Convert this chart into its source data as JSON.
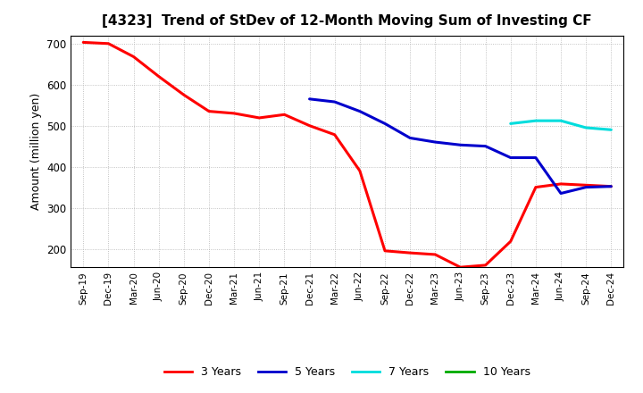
{
  "title": "[4323]  Trend of StDev of 12-Month Moving Sum of Investing CF",
  "ylabel": "Amount (million yen)",
  "ylim": [
    155,
    720
  ],
  "yticks": [
    200,
    300,
    400,
    500,
    600,
    700
  ],
  "background_color": "#ffffff",
  "grid_color": "#aaaaaa",
  "series": {
    "3 Years": {
      "color": "#ff0000",
      "x": [
        "Sep-19",
        "Dec-19",
        "Mar-20",
        "Jun-20",
        "Sep-20",
        "Dec-20",
        "Mar-21",
        "Jun-21",
        "Sep-21",
        "Dec-21",
        "Mar-22",
        "Jun-22",
        "Sep-22",
        "Dec-22",
        "Mar-23",
        "Jun-23",
        "Sep-23",
        "Dec-23",
        "Mar-24",
        "Jun-24",
        "Sep-24",
        "Dec-24"
      ],
      "y": [
        703,
        700,
        668,
        620,
        575,
        535,
        530,
        519,
        527,
        500,
        478,
        390,
        195,
        190,
        186,
        155,
        160,
        218,
        350,
        358,
        355,
        352
      ]
    },
    "5 Years": {
      "color": "#0000cc",
      "x": [
        "Dec-21",
        "Mar-22",
        "Jun-22",
        "Sep-22",
        "Dec-22",
        "Mar-23",
        "Jun-23",
        "Sep-23",
        "Dec-23",
        "Mar-24",
        "Jun-24",
        "Sep-24",
        "Dec-24"
      ],
      "y": [
        565,
        558,
        535,
        505,
        470,
        460,
        453,
        450,
        422,
        422,
        335,
        350,
        352
      ]
    },
    "7 Years": {
      "color": "#00dddd",
      "x": [
        "Dec-23",
        "Mar-24",
        "Jun-24",
        "Sep-24",
        "Dec-24"
      ],
      "y": [
        505,
        512,
        512,
        495,
        490
      ]
    },
    "10 Years": {
      "color": "#00aa00",
      "x": [],
      "y": []
    }
  },
  "legend_labels": [
    "3 Years",
    "5 Years",
    "7 Years",
    "10 Years"
  ],
  "legend_colors": [
    "#ff0000",
    "#0000cc",
    "#00dddd",
    "#00aa00"
  ],
  "x_labels": [
    "Sep-19",
    "Dec-19",
    "Mar-20",
    "Jun-20",
    "Sep-20",
    "Dec-20",
    "Mar-21",
    "Jun-21",
    "Sep-21",
    "Dec-21",
    "Mar-22",
    "Jun-22",
    "Sep-22",
    "Dec-22",
    "Mar-23",
    "Jun-23",
    "Sep-23",
    "Dec-23",
    "Mar-24",
    "Jun-24",
    "Sep-24",
    "Dec-24"
  ]
}
